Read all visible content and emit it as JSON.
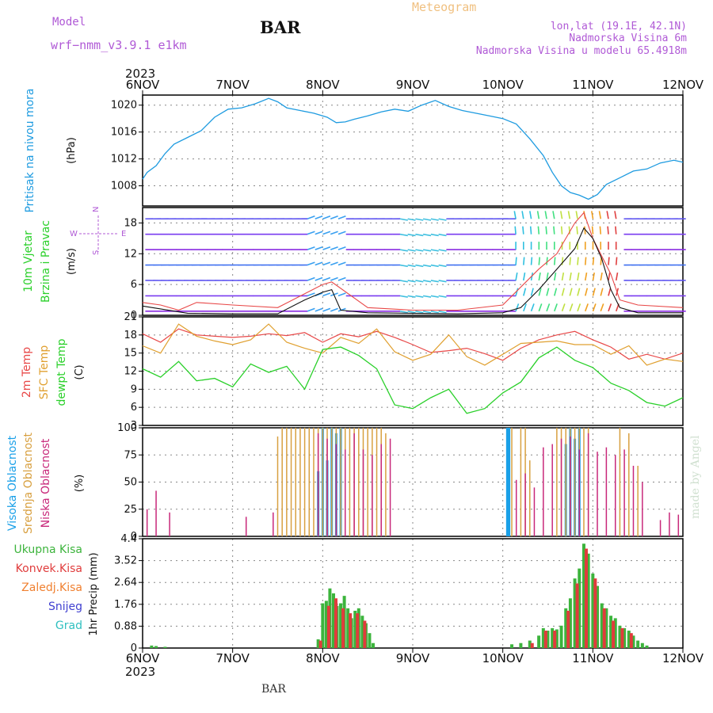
{
  "header": {
    "model_label": "Model",
    "model_name": "wrf−nmm_v3.9.1 e1km",
    "station": "BAR",
    "title": "Meteogram",
    "lonlat": "lon,lat (19.1E, 42.1N)",
    "elevation": "Nadmorska Visina 6m",
    "model_elevation": "Nadmorska Visina u modelu 65.4918m",
    "footer_station": "BAR",
    "credit": "made by Angel"
  },
  "colors": {
    "pressure": "#1e9be0",
    "temp2m": "#e84848",
    "sfc": "#e0a030",
    "dewpt": "#2ad02a",
    "high_cloud": "#1aa0e8",
    "mid_cloud": "#d8a040",
    "low_cloud": "#c8287a",
    "total_precip": "#3cb43c",
    "conv_precip": "#e03c3c",
    "gridlines": "#888888"
  },
  "chart_data": [
    {
      "type": "line",
      "id": "pressure",
      "ylabel_left": "Pritisak na nivou mora",
      "ylabel_unit": "(hPa)",
      "x_label_year": "2023",
      "x_ticks": [
        "6NOV",
        "7NOV",
        "8NOV",
        "9NOV",
        "10NOV",
        "11NOV",
        "12NOV"
      ],
      "xlim": [
        0,
        6
      ],
      "ylim": [
        1005,
        1021.5
      ],
      "y_ticks": [
        1008,
        1012,
        1016,
        1020
      ],
      "series": [
        {
          "x": [
            0,
            0.05,
            0.15,
            0.25,
            0.35,
            0.5,
            0.65,
            0.8,
            0.95,
            1.1,
            1.25,
            1.4,
            1.5,
            1.6,
            1.75,
            1.9,
            2.05,
            2.15,
            2.25,
            2.35,
            2.5,
            2.65,
            2.8,
            2.95,
            3.1,
            3.25,
            3.4,
            3.55,
            3.7,
            3.85,
            4.0,
            4.15,
            4.3,
            4.45,
            4.55,
            4.65,
            4.75,
            4.85,
            4.95,
            5.05,
            5.15,
            5.3,
            5.45,
            5.6,
            5.75,
            5.9,
            6.0
          ],
          "y": [
            1009.0,
            1010.0,
            1011.0,
            1012.8,
            1014.2,
            1015.2,
            1016.2,
            1018.2,
            1019.4,
            1019.6,
            1020.2,
            1021.0,
            1020.5,
            1019.6,
            1019.2,
            1018.8,
            1018.2,
            1017.4,
            1017.5,
            1017.9,
            1018.4,
            1019.0,
            1019.4,
            1019.1,
            1020.0,
            1020.7,
            1019.8,
            1019.2,
            1018.8,
            1018.4,
            1018.0,
            1017.2,
            1015.0,
            1012.5,
            1010.0,
            1008.0,
            1007.0,
            1006.6,
            1006.0,
            1006.7,
            1008.2,
            1009.2,
            1010.2,
            1010.5,
            1011.4,
            1011.8,
            1011.5
          ]
        }
      ]
    },
    {
      "type": "line",
      "id": "wind",
      "ylabel_left": [
        "10m Vjetar",
        "Brzina i Pravac"
      ],
      "ylabel_unit": "(m/s)",
      "compass": {
        "n": "N",
        "s": "S",
        "e": "E",
        "w": "W"
      },
      "xlim": [
        0,
        6
      ],
      "ylim": [
        0,
        21
      ],
      "y_ticks": [
        0,
        6,
        12,
        18
      ],
      "series": [
        {
          "name": "speed",
          "x": [
            0,
            0.5,
            1,
            1.5,
            1.8,
            2.0,
            2.1,
            2.2,
            2.5,
            3,
            3.5,
            4,
            4.2,
            4.4,
            4.6,
            4.8,
            4.9,
            5.0,
            5.1,
            5.2,
            5.3,
            5.5,
            6.0
          ],
          "y": [
            1.8,
            0.4,
            0.3,
            0.3,
            3.0,
            4.5,
            5.0,
            1.0,
            0.5,
            0.4,
            0.3,
            0.5,
            1.5,
            5.0,
            9.0,
            13.0,
            17.0,
            15.0,
            11.0,
            5.0,
            1.5,
            0.5,
            0.5
          ]
        },
        {
          "name": "gust",
          "x": [
            0,
            0.2,
            0.4,
            0.6,
            1,
            1.5,
            2,
            2.1,
            2.5,
            3,
            3.5,
            4,
            4.4,
            4.6,
            4.8,
            4.9,
            5.0,
            5.2,
            5.3,
            5.5,
            6.0
          ],
          "y": [
            2.5,
            2.0,
            1.0,
            2.5,
            2.0,
            1.5,
            6.0,
            6.5,
            1.5,
            1.0,
            1.0,
            2.0,
            9.0,
            12.0,
            18.0,
            20.0,
            15.0,
            8.0,
            3.0,
            2.0,
            1.5
          ]
        }
      ]
    },
    {
      "type": "line",
      "id": "temperature",
      "ylabel_left": [
        "2m Temp",
        "SFC Temp",
        "dewpt Temp"
      ],
      "ylabel_unit": "(C)",
      "xlim": [
        0,
        6
      ],
      "ylim": [
        3,
        21
      ],
      "y_ticks": [
        3,
        6,
        9,
        12,
        15,
        18,
        21
      ],
      "series": [
        {
          "name": "2m Temp",
          "x": [
            0,
            0.2,
            0.4,
            0.6,
            0.8,
            1.0,
            1.2,
            1.4,
            1.6,
            1.8,
            2.0,
            2.2,
            2.4,
            2.6,
            2.8,
            3.0,
            3.2,
            3.4,
            3.6,
            3.8,
            4.0,
            4.2,
            4.4,
            4.6,
            4.8,
            5.0,
            5.2,
            5.4,
            5.6,
            5.8,
            6.0
          ],
          "y": [
            18.2,
            16.8,
            19.0,
            18.0,
            17.8,
            17.6,
            17.8,
            18.2,
            17.9,
            18.4,
            16.8,
            18.2,
            17.7,
            18.6,
            17.6,
            16.4,
            15.1,
            15.4,
            15.8,
            14.9,
            13.8,
            15.8,
            17.2,
            18.0,
            18.6,
            17.2,
            16.0,
            14.0,
            14.8,
            14.0,
            15.0
          ]
        },
        {
          "name": "SFC Temp",
          "x": [
            0,
            0.2,
            0.4,
            0.6,
            0.8,
            1.0,
            1.2,
            1.4,
            1.6,
            1.8,
            2.0,
            2.2,
            2.4,
            2.6,
            2.8,
            3.0,
            3.2,
            3.4,
            3.6,
            3.8,
            4.0,
            4.2,
            4.4,
            4.6,
            4.8,
            5.0,
            5.2,
            5.4,
            5.6,
            5.8,
            6.0
          ],
          "y": [
            16.2,
            15.0,
            19.8,
            17.8,
            17.0,
            16.4,
            17.2,
            19.8,
            16.8,
            15.8,
            15.0,
            17.6,
            16.6,
            19.0,
            15.2,
            13.8,
            14.8,
            18.0,
            14.4,
            13.0,
            14.8,
            16.6,
            16.8,
            17.0,
            16.4,
            16.4,
            14.8,
            16.2,
            13.0,
            14.0,
            13.6
          ]
        },
        {
          "name": "dewpt Temp",
          "x": [
            0,
            0.2,
            0.4,
            0.6,
            0.8,
            1.0,
            1.2,
            1.4,
            1.6,
            1.8,
            2.0,
            2.2,
            2.4,
            2.6,
            2.8,
            3.0,
            3.2,
            3.4,
            3.6,
            3.8,
            4.0,
            4.2,
            4.4,
            4.6,
            4.8,
            5.0,
            5.2,
            5.4,
            5.6,
            5.8,
            6.0
          ],
          "y": [
            12.4,
            11.0,
            13.6,
            10.4,
            10.8,
            9.4,
            13.2,
            11.8,
            12.8,
            9.0,
            15.6,
            16.0,
            14.6,
            12.4,
            6.4,
            5.8,
            7.6,
            9.0,
            5.0,
            5.8,
            8.4,
            10.2,
            14.2,
            16.0,
            13.8,
            12.6,
            10.0,
            8.8,
            6.8,
            6.2,
            7.6
          ]
        }
      ]
    },
    {
      "type": "bar",
      "id": "cloud",
      "ylabel_left": [
        "Visoka Oblacnost",
        "Srednja Oblacnost",
        "Niska Oblacnost"
      ],
      "ylabel_unit": "(%)",
      "xlim": [
        0,
        6
      ],
      "ylim": [
        0,
        100
      ],
      "y_ticks": [
        0,
        25,
        50,
        75,
        100
      ],
      "series": [
        {
          "name": "Visoka Oblacnost",
          "x": [
            1.95,
            2.0,
            2.05,
            2.1,
            2.15,
            2.2,
            4.05,
            4.06,
            4.07,
            4.7,
            4.75,
            4.8,
            4.85
          ],
          "values": [
            60,
            100,
            70,
            100,
            95,
            100,
            100,
            100,
            100,
            85,
            100,
            90,
            100
          ]
        },
        {
          "name": "Srednja Oblacnost",
          "x": [
            1.5,
            1.55,
            1.6,
            1.65,
            1.7,
            1.75,
            1.8,
            1.85,
            1.9,
            1.95,
            2.0,
            2.05,
            2.1,
            2.15,
            2.2,
            2.25,
            2.3,
            2.35,
            2.4,
            2.45,
            2.5,
            2.55,
            2.6,
            2.65,
            2.7,
            4.1,
            4.2,
            4.25,
            4.3,
            4.6,
            4.65,
            4.7,
            4.75,
            4.8,
            4.85,
            4.9,
            4.95,
            5.3,
            5.4,
            5.5
          ],
          "values": [
            92,
            100,
            100,
            100,
            100,
            100,
            100,
            100,
            100,
            100,
            100,
            100,
            100,
            100,
            100,
            100,
            100,
            100,
            100,
            100,
            100,
            100,
            100,
            100,
            95,
            100,
            100,
            100,
            70,
            100,
            100,
            100,
            100,
            100,
            100,
            100,
            100,
            100,
            95,
            65
          ]
        },
        {
          "name": "Niska Oblacnost",
          "x": [
            0.05,
            0.15,
            0.3,
            0.45,
            0.5,
            0.6,
            0.7,
            0.8,
            0.9,
            1.05,
            1.15,
            1.25,
            1.45,
            1.8,
            1.95,
            2.05,
            2.15,
            2.25,
            2.35,
            2.45,
            2.55,
            2.65,
            2.75,
            2.95,
            3.1,
            3.3,
            3.5,
            3.7,
            3.9,
            4.15,
            4.25,
            4.35,
            4.45,
            4.55,
            4.65,
            4.75,
            4.85,
            4.95,
            5.05,
            5.15,
            5.25,
            5.35,
            5.45,
            5.55,
            5.65,
            5.75,
            5.85,
            5.95
          ],
          "values": [
            25,
            42,
            22,
            0,
            0,
            0,
            0,
            0,
            0,
            0,
            18,
            0,
            22,
            0,
            95,
            90,
            85,
            80,
            95,
            80,
            75,
            85,
            90,
            0,
            0,
            0,
            0,
            0,
            0,
            52,
            58,
            45,
            82,
            85,
            90,
            92,
            80,
            95,
            78,
            82,
            75,
            80,
            65,
            50,
            0,
            15,
            22,
            20
          ]
        }
      ]
    },
    {
      "type": "bar",
      "id": "precip",
      "ylabel_left": [
        "Ukupna Kisa",
        "Konvek.Kisa",
        "Zaledj.Kisa",
        "Snijeg",
        "Grad"
      ],
      "ylabel_unit": "1hr Precip (mm)",
      "x_label_year": "2023",
      "x_ticks": [
        "6NOV",
        "7NOV",
        "8NOV",
        "9NOV",
        "10NOV",
        "11NOV",
        "12NOV"
      ],
      "xlim": [
        0,
        6
      ],
      "ylim": [
        0,
        4.4
      ],
      "y_ticks": [
        0,
        0.88,
        1.76,
        2.64,
        3.52,
        4.4
      ],
      "series": [
        {
          "name": "Ukupna Kisa",
          "x": [
            0.1,
            0.15,
            0.25,
            1.95,
            2.0,
            2.04,
            2.08,
            2.12,
            2.16,
            2.2,
            2.24,
            2.28,
            2.32,
            2.36,
            2.4,
            2.44,
            2.48,
            2.52,
            2.56,
            4.1,
            4.2,
            4.3,
            4.4,
            4.45,
            4.5,
            4.55,
            4.6,
            4.65,
            4.7,
            4.75,
            4.8,
            4.85,
            4.9,
            4.95,
            5.0,
            5.05,
            5.1,
            5.15,
            5.2,
            5.25,
            5.3,
            5.35,
            5.4,
            5.45,
            5.5,
            5.55,
            5.6
          ],
          "values": [
            0.1,
            0.08,
            0.05,
            0.35,
            1.8,
            1.9,
            2.4,
            2.2,
            1.7,
            1.8,
            2.1,
            1.6,
            1.2,
            1.5,
            1.6,
            1.3,
            1.0,
            0.6,
            0.2,
            0.15,
            0.2,
            0.3,
            0.5,
            0.8,
            0.7,
            0.8,
            0.75,
            0.9,
            1.6,
            2.0,
            2.8,
            3.2,
            4.2,
            3.8,
            3.0,
            2.5,
            1.8,
            1.6,
            1.3,
            1.2,
            0.9,
            0.8,
            0.7,
            0.5,
            0.3,
            0.2,
            0.1
          ]
        },
        {
          "name": "Konvek.Kisa",
          "x": [
            1.95,
            2.04,
            2.12,
            2.2,
            2.28,
            2.36,
            2.44,
            4.3,
            4.45,
            4.55,
            4.7,
            4.8,
            4.9,
            5.0,
            5.1,
            5.2,
            5.3,
            5.4
          ],
          "values": [
            0.3,
            1.7,
            2.0,
            1.6,
            1.4,
            1.4,
            1.1,
            0.2,
            0.7,
            0.7,
            1.5,
            2.6,
            4.0,
            2.8,
            1.6,
            1.1,
            0.8,
            0.6
          ]
        }
      ]
    }
  ]
}
